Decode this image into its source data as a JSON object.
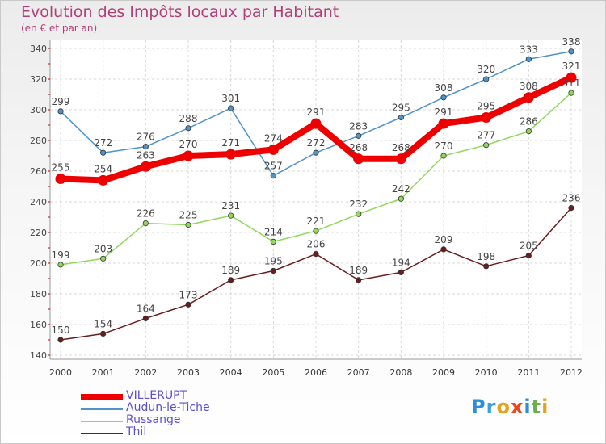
{
  "title": "Evolution des Impôts locaux par Habitant",
  "subtitle": "(en € et par an)",
  "logo_letters": [
    "P",
    "r",
    "o",
    "x",
    "i",
    "t",
    "i"
  ],
  "logo_colors": [
    "#2a8fd8",
    "#3aa0e0",
    "#e8a21a",
    "#e8491a",
    "#2a8fd8",
    "#6ab04c",
    "#e8a21a"
  ],
  "chart_data": {
    "type": "line",
    "title": "Evolution des Impôts locaux par Habitant",
    "subtitle": "(en € et par an)",
    "xlabel": "",
    "ylabel": "",
    "x": [
      "2000",
      "2001",
      "2002",
      "2003",
      "2004",
      "2005",
      "2006",
      "2007",
      "2008",
      "2009",
      "2010",
      "2011",
      "2012"
    ],
    "ylim": [
      140,
      340
    ],
    "yticks": [
      "140",
      "160",
      "180",
      "200",
      "220",
      "240",
      "260",
      "280",
      "300",
      "320",
      "340"
    ],
    "grid": true,
    "legend_position": "bottom-left",
    "series": [
      {
        "name": "VILLERUPT",
        "color": "#ee0000",
        "values": [
          255,
          254,
          263,
          270,
          271,
          274,
          291,
          268,
          268,
          291,
          295,
          308,
          321
        ]
      },
      {
        "name": "Audun-le-Tiche",
        "color": "#4f92cc",
        "values": [
          299,
          272,
          276,
          288,
          301,
          257,
          272,
          283,
          295,
          308,
          320,
          333,
          338
        ]
      },
      {
        "name": "Russange",
        "color": "#8fd85a",
        "values": [
          199,
          203,
          226,
          225,
          231,
          214,
          221,
          232,
          242,
          270,
          277,
          286,
          311
        ]
      },
      {
        "name": "Thil",
        "color": "#6b1c1c",
        "values": [
          150,
          154,
          164,
          173,
          189,
          195,
          206,
          189,
          194,
          209,
          198,
          205,
          236
        ]
      }
    ]
  }
}
